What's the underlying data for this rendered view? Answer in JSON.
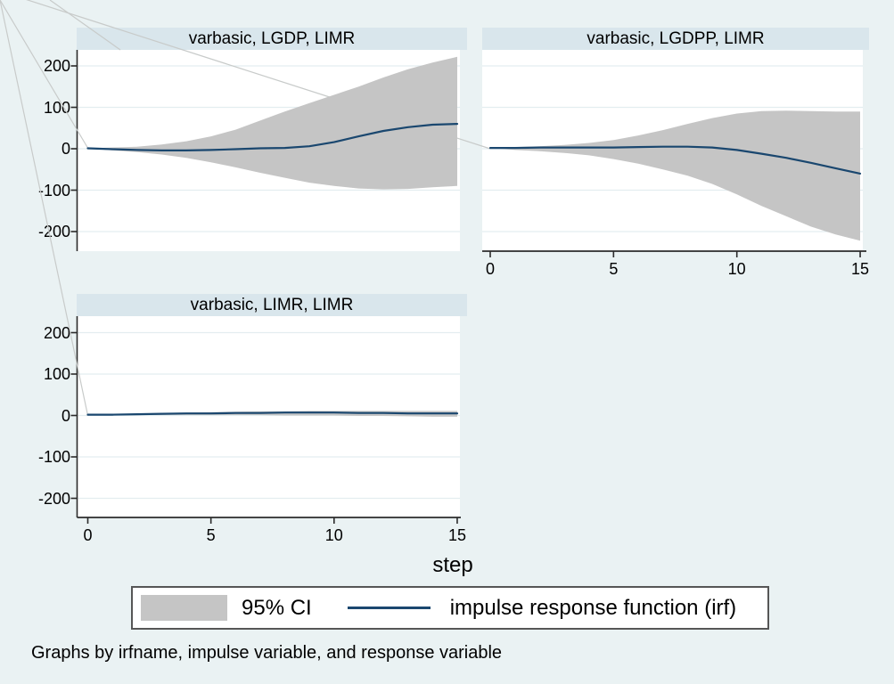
{
  "figure": {
    "background_color": "#eaf2f3",
    "panel_title_bg": "#d9e6ec",
    "plot_bg": "#ffffff",
    "grid_color": "#e3edf0",
    "axis_color": "#2b2b2b",
    "ci_color": "#c5c5c5",
    "irf_color": "#1a476f",
    "artifact_line_color": "#c8cbca",
    "legend_border_color": "#565656"
  },
  "chart_data": [
    {
      "type": "area",
      "title": "varbasic, LGDP, LIMR",
      "x": [
        0,
        1,
        2,
        3,
        4,
        5,
        6,
        7,
        8,
        9,
        10,
        11,
        12,
        13,
        14,
        15
      ],
      "series": [
        {
          "name": "95% CI upper",
          "values": [
            1,
            3,
            5,
            10,
            18,
            30,
            46,
            68,
            90,
            110,
            130,
            150,
            172,
            192,
            208,
            222
          ]
        },
        {
          "name": "95% CI lower",
          "values": [
            1,
            -4,
            -8,
            -14,
            -22,
            -33,
            -45,
            -58,
            -70,
            -82,
            -90,
            -96,
            -98,
            -97,
            -93,
            -90
          ]
        },
        {
          "name": "impulse response function (irf)",
          "values": [
            1,
            -1,
            -3,
            -4,
            -4,
            -3,
            -1,
            1,
            2,
            6,
            16,
            30,
            43,
            52,
            58,
            60
          ]
        }
      ],
      "yticks": [
        200,
        100,
        0,
        -100,
        -200
      ],
      "xticks": [
        0,
        5,
        10,
        15
      ],
      "ylim": [
        -245,
        240
      ],
      "xlabel": "step",
      "show_x_axis": false,
      "show_y_axis": true,
      "grid": true
    },
    {
      "type": "area",
      "title": "varbasic, LGDPP, LIMR",
      "x": [
        0,
        1,
        2,
        3,
        4,
        5,
        6,
        7,
        8,
        9,
        10,
        11,
        12,
        13,
        14,
        15
      ],
      "series": [
        {
          "name": "95% CI upper",
          "values": [
            2,
            4,
            6,
            9,
            14,
            21,
            32,
            45,
            60,
            74,
            85,
            91,
            92,
            91,
            90,
            90
          ]
        },
        {
          "name": "95% CI lower",
          "values": [
            2,
            -3,
            -6,
            -10,
            -16,
            -25,
            -36,
            -50,
            -65,
            -85,
            -110,
            -138,
            -163,
            -188,
            -207,
            -222
          ]
        },
        {
          "name": "impulse response function (irf)",
          "values": [
            2,
            2,
            3,
            3,
            3,
            3,
            4,
            5,
            5,
            3,
            -3,
            -12,
            -22,
            -34,
            -47,
            -60
          ]
        }
      ],
      "yticks": [
        200,
        100,
        0,
        -100,
        -200
      ],
      "xticks": [
        0,
        5,
        10,
        15
      ],
      "ylim": [
        -245,
        240
      ],
      "xlabel": "step",
      "show_x_axis": true,
      "show_y_axis": false,
      "grid": true
    },
    {
      "type": "area",
      "title": "varbasic, LIMR, LIMR",
      "x": [
        0,
        1,
        2,
        3,
        4,
        5,
        6,
        7,
        8,
        9,
        10,
        11,
        12,
        13,
        14,
        15
      ],
      "series": [
        {
          "name": "95% CI upper",
          "values": [
            2,
            3,
            5,
            6,
            7,
            8,
            9,
            10,
            10,
            11,
            11,
            11,
            11,
            11,
            11,
            11
          ]
        },
        {
          "name": "95% CI lower",
          "values": [
            2,
            1,
            1,
            1,
            1,
            1,
            1,
            1,
            0,
            0,
            0,
            -1,
            -1,
            -2,
            -3,
            -3
          ]
        },
        {
          "name": "impulse response function (irf)",
          "values": [
            2,
            2,
            3,
            4,
            5,
            5,
            6,
            6,
            7,
            7,
            7,
            6,
            6,
            5,
            5,
            5
          ]
        }
      ],
      "yticks": [
        200,
        100,
        0,
        -100,
        -200
      ],
      "xticks": [
        0,
        5,
        10,
        15
      ],
      "ylim": [
        -245,
        240
      ],
      "xlabel": "step",
      "show_x_axis": true,
      "show_y_axis": true,
      "grid": true
    }
  ],
  "xaxis_title": "step",
  "legend": {
    "ci_label": "95% CI",
    "irf_label": "impulse response function (irf)",
    "position": "bottom-center"
  },
  "footnote": "Graphs by irfname, impulse variable, and response variable",
  "artifact_lines": [
    [
      0,
      -10,
      550,
      167
    ],
    [
      56,
      0,
      135,
      56
    ],
    [
      0,
      0,
      99,
      167
    ],
    [
      0,
      0,
      98.5,
      466.5
    ]
  ]
}
